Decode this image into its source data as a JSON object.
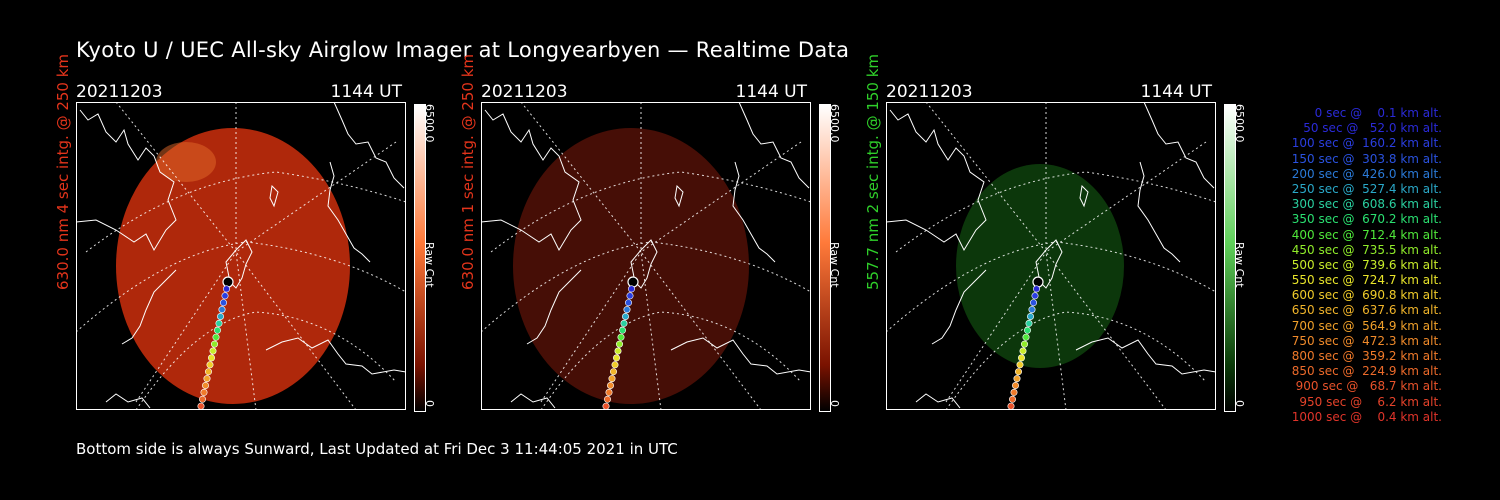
{
  "title": "Kyoto U / UEC All-sky Airglow Imager at Longyearbyen — Realtime Data",
  "footer": "Bottom side is always Sunward, Last Updated at Fri Dec  3 11:44:05 2021 in UTC",
  "panels": [
    {
      "date": "20211203",
      "time": "1144 UT",
      "ylabel": "630.0 nm 4 sec intg. @ 250 km",
      "ylabel_color": "#e3341b",
      "cb_max": "6500.0",
      "cb_unit": "Raw Cnt",
      "cb_min": "0",
      "image_color": "#b82a0c",
      "image_opacity": 0.95
    },
    {
      "date": "20211203",
      "time": "1144 UT",
      "ylabel": "630.0 nm 1 sec intg. @ 250 km",
      "ylabel_color": "#e3341b",
      "cb_max": "6500.0",
      "cb_unit": "Raw Cnt",
      "cb_min": "0",
      "image_color": "#4a0f06",
      "image_opacity": 0.95
    },
    {
      "date": "20211203",
      "time": "1144 UT",
      "ylabel": "557.7 nm 2 sec intg. @ 150 km",
      "ylabel_color": "#2fcf2a",
      "cb_max": "6500.0",
      "cb_unit": "Raw Cnt",
      "cb_min": "0",
      "image_color": "#0d3a0c",
      "image_opacity": 0.95
    }
  ],
  "legend": [
    {
      "text": "   0 sec @    0.1 km alt.",
      "color": "#2a2ad8"
    },
    {
      "text": "  50 sec @   52.0 km alt.",
      "color": "#2a2ad8"
    },
    {
      "text": " 100 sec @  160.2 km alt.",
      "color": "#2a3ee0"
    },
    {
      "text": " 150 sec @  303.8 km alt.",
      "color": "#2a52e0"
    },
    {
      "text": " 200 sec @  426.0 km alt.",
      "color": "#2a7ad8"
    },
    {
      "text": " 250 sec @  527.4 km alt.",
      "color": "#2aa8c8"
    },
    {
      "text": " 300 sec @  608.6 km alt.",
      "color": "#2ad0a0"
    },
    {
      "text": " 350 sec @  670.2 km alt.",
      "color": "#2ae070"
    },
    {
      "text": " 400 sec @  712.4 km alt.",
      "color": "#50e83a"
    },
    {
      "text": " 450 sec @  735.5 km alt.",
      "color": "#90ec2a"
    },
    {
      "text": " 500 sec @  739.6 km alt.",
      "color": "#c8ec2a"
    },
    {
      "text": " 550 sec @  724.7 km alt.",
      "color": "#e8e42a"
    },
    {
      "text": " 600 sec @  690.8 km alt.",
      "color": "#f0cc2a"
    },
    {
      "text": " 650 sec @  637.6 km alt.",
      "color": "#f0b42a"
    },
    {
      "text": " 700 sec @  564.9 km alt.",
      "color": "#f0a02a"
    },
    {
      "text": " 750 sec @  472.3 km alt.",
      "color": "#f08a2a"
    },
    {
      "text": " 800 sec @  359.2 km alt.",
      "color": "#f07a2a"
    },
    {
      "text": " 850 sec @  224.9 km alt.",
      "color": "#ec6a2a"
    },
    {
      "text": " 900 sec @   68.7 km alt.",
      "color": "#e8522a"
    },
    {
      "text": " 950 sec @    6.2 km alt.",
      "color": "#e4422a"
    },
    {
      "text": "1000 sec @    0.4 km alt.",
      "color": "#e0342a"
    }
  ]
}
